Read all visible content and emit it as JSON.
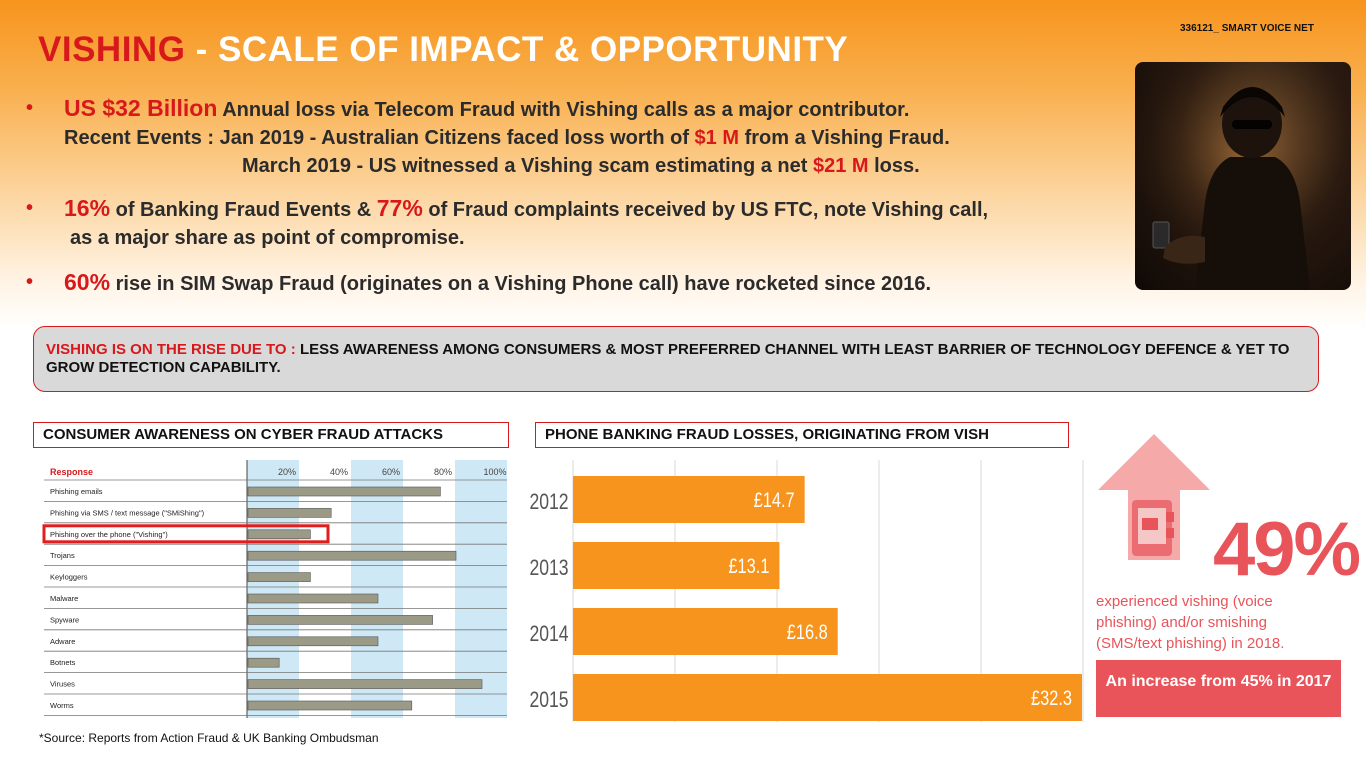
{
  "id_tag": "336121_ SMART VOICE NET",
  "title": {
    "red": "VISHING",
    "rest": " - SCALE OF  IMPACT & OPPORTUNITY"
  },
  "bullets": {
    "b1": {
      "hl1": "US $32 Billion",
      "t1": " Annual loss via Telecom Fraud with Vishing calls as a major contributor.",
      "t2a": "Recent Events : Jan 2019 - Australian Citizens faced loss worth of ",
      "hl2": "$1 M",
      "t2b": " from a Vishing Fraud.",
      "t3a": "March 2019 - US witnessed a Vishing scam estimating a net ",
      "hl3": "$21 M",
      "t3b": " loss."
    },
    "b2": {
      "hl1": "16%",
      "t1": " of Banking Fraud Events & ",
      "hl2": "77%",
      "t2": " of Fraud complaints received by US FTC, note Vishing call,",
      "t3": "as a major share as point of compromise."
    },
    "b3": {
      "hl1": "60%",
      "t1": " rise in SIM Swap Fraud (originates on a Vishing Phone call) have rocketed since 2016."
    }
  },
  "banner": {
    "red": "VISHING IS ON THE RISE DUE TO : ",
    "text": " LESS AWARENESS AMONG CONSUMERS & MOST PREFERRED CHANNEL WITH LEAST BARRIER OF TECHNOLOGY DEFENCE & YET TO GROW DETECTION CAPABILITY."
  },
  "panel1_title": "CONSUMER AWARENESS ON CYBER FRAUD ATTACKS",
  "panel2_title": "PHONE BANKING FRAUD LOSSES, ORIGINATING FROM VISH",
  "source": "*Source: Reports from Action Fraud & UK Banking Ombudsman",
  "callout": {
    "percent": "49%",
    "text": "experienced vishing (voice phishing) and/or smishing (SMS/text phishing) in 2018.",
    "increase": "An increase from 45% in 2017",
    "colors": {
      "accent": "#e8545a"
    }
  },
  "colors": {
    "red": "#d7191c",
    "orange": "#f7941d",
    "bar_gray": "#9b9a86",
    "shade_blue": "#cfe8f5"
  },
  "chart_data": [
    {
      "type": "bar",
      "orientation": "horizontal",
      "column_header": "Response",
      "tick_labels": [
        "20%",
        "40%",
        "60%",
        "80%",
        "100%"
      ],
      "xlim": [
        0,
        100
      ],
      "categories": [
        "Phishing emails",
        "Phishing via SMS / text message (\"SMiShing\")",
        "Phishing over the phone (\"Vishing\")",
        "Trojans",
        "Keyloggers",
        "Malware",
        "Spyware",
        "Adware",
        "Botnets",
        "Viruses",
        "Worms"
      ],
      "values": [
        74,
        32,
        24,
        80,
        24,
        50,
        71,
        50,
        12,
        90,
        63
      ],
      "highlighted": "Phishing over the phone (\"Vishing\")"
    },
    {
      "type": "bar",
      "orientation": "horizontal",
      "categories": [
        "2012",
        "2013",
        "2014",
        "2015"
      ],
      "values": [
        14.7,
        13.1,
        16.8,
        32.3
      ],
      "value_labels": [
        "£14.7",
        "£13.1",
        "£16.8",
        "£32.3"
      ],
      "xlim": [
        0,
        32.3
      ],
      "grid": true
    }
  ]
}
